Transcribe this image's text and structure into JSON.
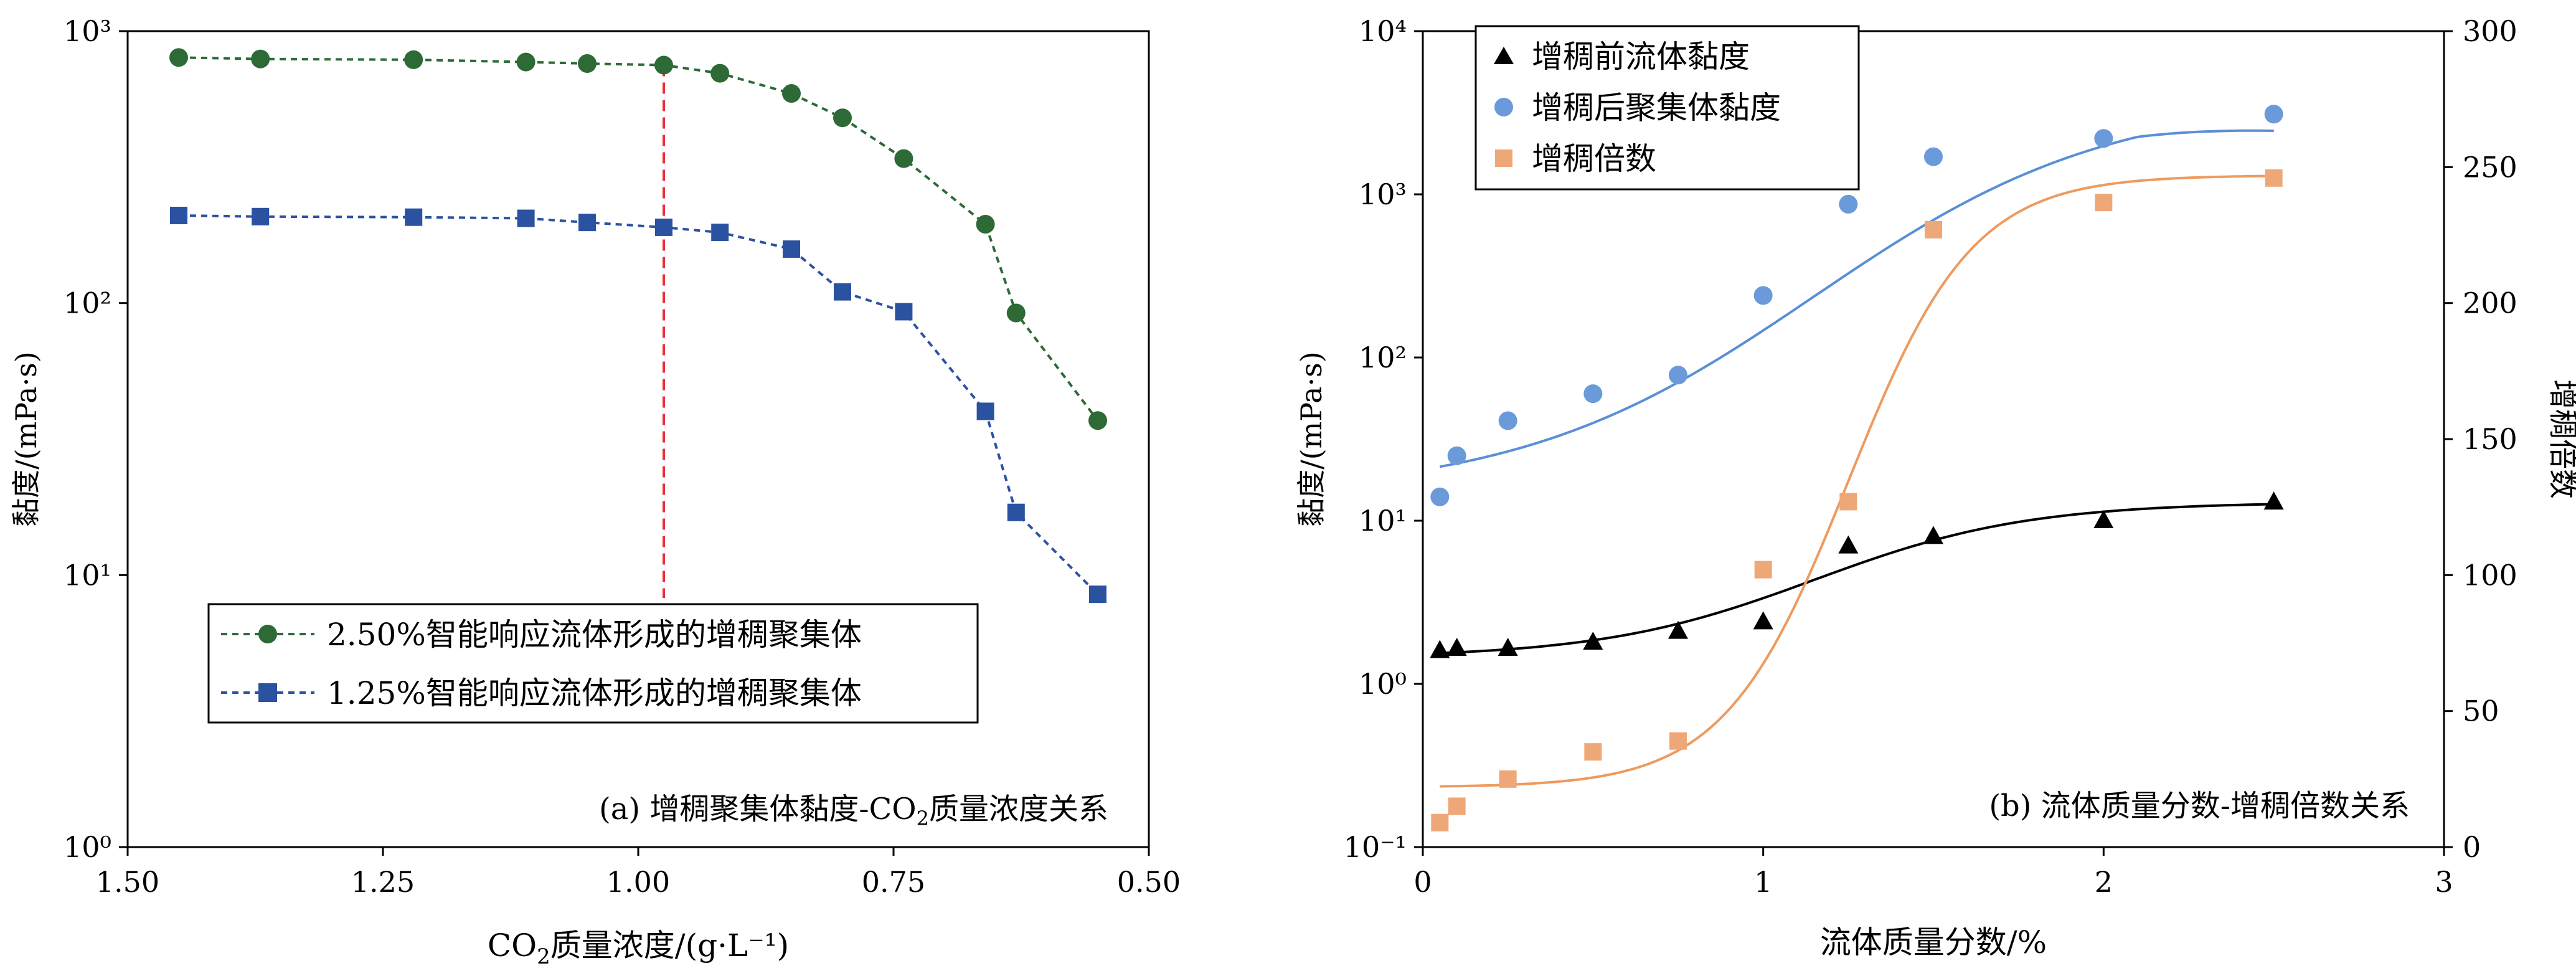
{
  "chart_data": [
    {
      "type": "line",
      "panel_caption": "(a) 增稠聚集体黏度-CO₂质量浓度关系",
      "xlabel": "CO₂质量浓度/(g·L⁻¹)",
      "ylabel": "黏度/(mPa·s)",
      "x_reversed": true,
      "xlim": [
        1.5,
        0.5
      ],
      "ylim": [
        1,
        1000
      ],
      "y_scale": "log",
      "x_ticks": [
        "1.50",
        "1.25",
        "1.00",
        "0.75",
        "0.50"
      ],
      "y_ticks": [
        "10⁰",
        "10¹",
        "10²",
        "10³"
      ],
      "reference_line": {
        "x": 0.975,
        "color": "#e8313a",
        "style": "dashed"
      },
      "legend_position": "center-left",
      "series": [
        {
          "name": "2.50%智能响应流体形成的增稠聚集体",
          "color": "#2d6a36",
          "marker": "circle",
          "x": [
            1.45,
            1.37,
            1.22,
            1.11,
            1.05,
            0.975,
            0.92,
            0.85,
            0.8,
            0.74,
            0.66,
            0.63,
            0.55
          ],
          "y": [
            800,
            790,
            785,
            770,
            760,
            750,
            700,
            590,
            480,
            340,
            195,
            92,
            37
          ]
        },
        {
          "name": "1.25%智能响应流体形成的增稠聚集体",
          "color": "#2a52a0",
          "marker": "square",
          "x": [
            1.45,
            1.37,
            1.22,
            1.11,
            1.05,
            0.975,
            0.92,
            0.85,
            0.8,
            0.74,
            0.66,
            0.63,
            0.55
          ],
          "y": [
            210,
            208,
            207,
            205,
            198,
            190,
            182,
            158,
            110,
            93,
            40,
            17,
            8.5
          ]
        }
      ]
    },
    {
      "type": "scatter",
      "panel_caption": "(b) 流体质量分数-增稠倍数关系",
      "xlabel": "流体质量分数/%",
      "ylabel": "黏度/(mPa·s)",
      "y2label": "增稠倍数",
      "xlim": [
        0,
        3
      ],
      "ylim": [
        0.1,
        10000
      ],
      "y_scale": "log",
      "y2lim": [
        0,
        300
      ],
      "x_ticks": [
        "0",
        "1",
        "2",
        "3"
      ],
      "y_ticks": [
        "10⁻¹",
        "10⁰",
        "10¹",
        "10²",
        "10³",
        "10⁴"
      ],
      "y2_ticks": [
        "0",
        "50",
        "100",
        "150",
        "200",
        "250",
        "300"
      ],
      "legend_position": "top-left",
      "series": [
        {
          "name": "增稠前流体黏度",
          "color": "#000000",
          "marker": "triangle",
          "axis": "left",
          "x": [
            0.05,
            0.1,
            0.25,
            0.5,
            0.75,
            1.0,
            1.25,
            1.5,
            2.0,
            2.5
          ],
          "y": [
            1.6,
            1.65,
            1.65,
            1.8,
            2.1,
            2.4,
            7.0,
            8.0,
            10.0,
            13.0
          ],
          "fit_color": "#000000"
        },
        {
          "name": "增稠后聚集体黏度",
          "color": "#6a9ad9",
          "marker": "circle",
          "axis": "left",
          "x": [
            0.05,
            0.1,
            0.25,
            0.5,
            0.75,
            1.0,
            1.25,
            1.5,
            2.0,
            2.5
          ],
          "y": [
            14,
            25,
            41,
            60,
            78,
            240,
            870,
            1700,
            2200,
            3100
          ],
          "fit_color": "#5a8fd6"
        },
        {
          "name": "增稠倍数",
          "color": "#eea877",
          "marker": "square",
          "axis": "right",
          "x": [
            0.05,
            0.1,
            0.25,
            0.5,
            0.75,
            1.0,
            1.25,
            1.5,
            2.0,
            2.5
          ],
          "y": [
            9,
            15,
            25,
            35,
            39,
            102,
            127,
            227,
            237,
            246
          ],
          "fit_color": "#ee9a5e"
        }
      ]
    }
  ]
}
